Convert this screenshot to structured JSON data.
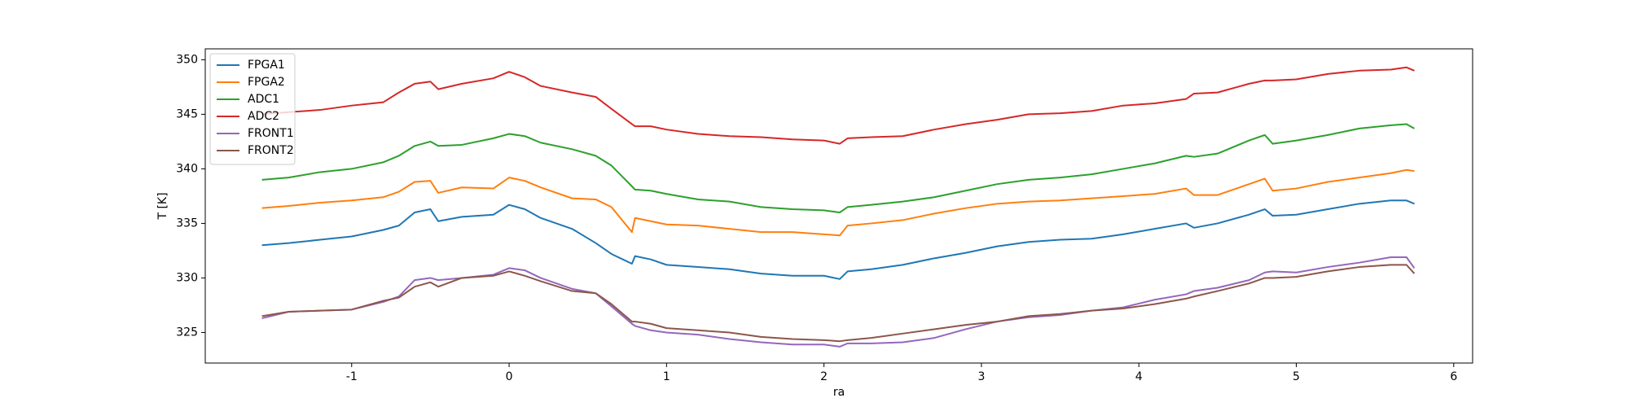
{
  "chart_data": {
    "type": "line",
    "xlabel": "ra",
    "ylabel": "T [K]",
    "x": [
      -1.57,
      -1.4,
      -1.2,
      -1.0,
      -0.8,
      -0.7,
      -0.6,
      -0.5,
      -0.45,
      -0.3,
      -0.1,
      0,
      0.1,
      0.2,
      0.4,
      0.55,
      0.65,
      0.78,
      0.8,
      0.9,
      1.0,
      1.2,
      1.4,
      1.6,
      1.8,
      2.0,
      2.1,
      2.15,
      2.3,
      2.5,
      2.7,
      2.9,
      3.1,
      3.3,
      3.5,
      3.7,
      3.9,
      4.1,
      4.3,
      4.35,
      4.5,
      4.7,
      4.8,
      4.85,
      5.0,
      5.2,
      5.4,
      5.6,
      5.7,
      5.75
    ],
    "series": [
      {
        "name": "FPGA1",
        "color": "#1f77b4",
        "values": [
          333,
          333.2,
          333.5,
          333.8,
          334.4,
          334.8,
          336,
          336.3,
          335.2,
          335.6,
          335.8,
          336.7,
          336.3,
          335.5,
          334.5,
          333.2,
          332.2,
          331.3,
          332,
          331.7,
          331.2,
          331,
          330.8,
          330.4,
          330.2,
          330.2,
          329.9,
          330.6,
          330.8,
          331.2,
          331.8,
          332.3,
          332.9,
          333.3,
          333.5,
          333.6,
          334,
          334.5,
          335,
          334.6,
          335,
          335.8,
          336.3,
          335.7,
          335.8,
          336.3,
          336.8,
          337.1,
          337.1,
          336.8
        ]
      },
      {
        "name": "FPGA2",
        "color": "#ff7f0e",
        "values": [
          336.4,
          336.6,
          336.9,
          337.1,
          337.4,
          337.9,
          338.8,
          338.9,
          337.8,
          338.3,
          338.2,
          339.2,
          338.9,
          338.3,
          337.3,
          337.2,
          336.5,
          334.2,
          335.5,
          335.2,
          334.9,
          334.8,
          334.5,
          334.2,
          334.2,
          334.0,
          333.9,
          334.8,
          335,
          335.3,
          335.9,
          336.4,
          336.8,
          337,
          337.1,
          337.3,
          337.5,
          337.7,
          338.2,
          337.6,
          337.6,
          338.6,
          339.1,
          338,
          338.2,
          338.8,
          339.2,
          339.6,
          339.9,
          339.8
        ]
      },
      {
        "name": "ADC1",
        "color": "#2ca02c",
        "values": [
          339,
          339.2,
          339.7,
          340,
          340.6,
          341.2,
          342.1,
          342.5,
          342.1,
          342.2,
          342.8,
          343.2,
          343,
          342.4,
          341.8,
          341.2,
          340.3,
          338.4,
          338.1,
          338,
          337.7,
          337.2,
          337,
          336.5,
          336.3,
          336.2,
          336.0,
          336.5,
          336.7,
          337,
          337.4,
          338,
          338.6,
          339,
          339.2,
          339.5,
          340,
          340.5,
          341.2,
          341.1,
          341.4,
          342.6,
          343.1,
          342.3,
          342.6,
          343.1,
          343.7,
          344,
          344.1,
          343.7
        ]
      },
      {
        "name": "ADC2",
        "color": "#d62728",
        "values": [
          345,
          345.2,
          345.4,
          345.8,
          346.1,
          347,
          347.8,
          348,
          347.3,
          347.8,
          348.3,
          348.9,
          348.4,
          347.6,
          347,
          346.6,
          345.5,
          344.1,
          343.9,
          343.9,
          343.6,
          343.2,
          343,
          342.9,
          342.7,
          342.6,
          342.3,
          342.8,
          342.9,
          343,
          343.6,
          344.1,
          344.5,
          345,
          345.1,
          345.3,
          345.8,
          346,
          346.4,
          346.9,
          347,
          347.8,
          348.1,
          348.1,
          348.2,
          348.7,
          349,
          349.1,
          349.3,
          349
        ]
      },
      {
        "name": "FRONT1",
        "color": "#9467bd",
        "values": [
          326.3,
          326.9,
          327,
          327.1,
          327.8,
          328.3,
          329.8,
          330,
          329.8,
          330,
          330.3,
          330.9,
          330.7,
          330,
          329,
          328.6,
          327.4,
          325.8,
          325.6,
          325.2,
          325,
          324.8,
          324.4,
          324.1,
          323.9,
          323.9,
          323.7,
          324,
          324,
          324.1,
          324.5,
          325.3,
          326,
          326.4,
          326.6,
          327,
          327.3,
          328,
          328.5,
          328.8,
          329.1,
          329.8,
          330.5,
          330.6,
          330.5,
          331,
          331.4,
          331.9,
          331.9,
          330.9
        ]
      },
      {
        "name": "FRONT2",
        "color": "#8c564b",
        "values": [
          326.5,
          326.9,
          327,
          327.1,
          327.9,
          328.2,
          329.2,
          329.6,
          329.2,
          330,
          330.2,
          330.6,
          330.2,
          329.7,
          328.8,
          328.6,
          327.6,
          326,
          326,
          325.8,
          325.4,
          325.2,
          325,
          324.6,
          324.4,
          324.3,
          324.2,
          324.3,
          324.5,
          324.9,
          325.3,
          325.7,
          326,
          326.5,
          326.7,
          327,
          327.2,
          327.6,
          328.1,
          328.3,
          328.8,
          329.5,
          330,
          330,
          330.1,
          330.6,
          331,
          331.2,
          331.2,
          330.4
        ]
      }
    ],
    "xlim": [
      -1.93,
      6.12
    ],
    "ylim": [
      322.2,
      351.0
    ],
    "xticks": [
      -1,
      0,
      1,
      2,
      3,
      4,
      5,
      6
    ],
    "yticks": [
      325,
      330,
      335,
      340,
      345,
      350
    ],
    "legend": "upper left"
  }
}
